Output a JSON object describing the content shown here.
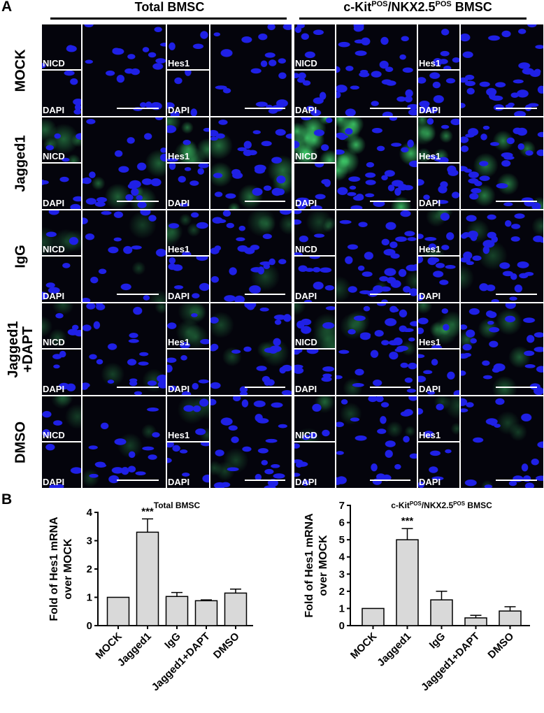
{
  "panel_a": {
    "letter": "A",
    "groups": [
      {
        "base": "Total BMSC",
        "sup1": "",
        "mid": "",
        "sup2": "",
        "tail": ""
      },
      {
        "base": "c-Kit",
        "sup1": "POS",
        "mid": "/NKX2.5",
        "sup2": "POS",
        "tail": " BMSC"
      }
    ],
    "rows": [
      {
        "label": [
          "MOCK"
        ],
        "green": [
          0,
          0,
          0,
          0
        ],
        "density": [
          0.6,
          0.6,
          1.0,
          1.0
        ]
      },
      {
        "label": [
          "Jagged1"
        ],
        "green": [
          0.35,
          0.45,
          1.0,
          0.55
        ],
        "density": [
          0.7,
          0.8,
          1.0,
          1.0
        ]
      },
      {
        "label": [
          "IgG"
        ],
        "green": [
          0.05,
          0.1,
          0.05,
          0.1
        ],
        "density": [
          0.5,
          0.8,
          1.0,
          1.0
        ]
      },
      {
        "label": [
          "Jagged1",
          "+DAPT"
        ],
        "green": [
          0.08,
          0.12,
          0.1,
          0.3
        ],
        "density": [
          0.7,
          0.8,
          1.0,
          0.9
        ]
      },
      {
        "label": [
          "DMSO"
        ],
        "green": [
          0.05,
          0.05,
          0.05,
          0.05
        ],
        "density": [
          0.5,
          0.8,
          0.8,
          0.6
        ]
      }
    ],
    "inset_labels": {
      "nicd": "NICD",
      "hes1": "Hes1",
      "dapi": "DAPI"
    }
  },
  "panel_b": {
    "letter": "B"
  },
  "colors": {
    "nuclei": "#1f20e6",
    "green_signal": "#3fcf6a",
    "bar_fill": "#d9d9d9",
    "tile_bg": "#04040c"
  },
  "chart_data": [
    {
      "type": "bar",
      "title": "Total BMSC",
      "categories": [
        "MOCK",
        "Jagged1",
        "IgG",
        "Jagged1+DAPT",
        "DMSO"
      ],
      "values": [
        1.0,
        3.3,
        1.03,
        0.88,
        1.15
      ],
      "errors": [
        0,
        0.47,
        0.14,
        0.03,
        0.14
      ],
      "annotations": [
        {
          "category": "Jagged1",
          "text": "***"
        }
      ],
      "ylabel": [
        "Fold of Hes1 mRNA",
        "over MOCK"
      ],
      "ylim": [
        0,
        4
      ],
      "yticks": [
        0,
        1,
        2,
        3,
        4
      ],
      "grid": false
    },
    {
      "type": "bar",
      "title": "c-Kit POS/NKX2.5 POS BMSC",
      "title_parts": {
        "base": "c-Kit",
        "sup1": "POS",
        "mid": "/NKX2.5",
        "sup2": "POS",
        "tail": " BMSC"
      },
      "categories": [
        "MOCK",
        "Jagged1",
        "IgG",
        "Jagged1+DAPT",
        "DMSO"
      ],
      "values": [
        1.0,
        5.0,
        1.5,
        0.45,
        0.85
      ],
      "errors": [
        0,
        0.65,
        0.5,
        0.15,
        0.25
      ],
      "annotations": [
        {
          "category": "Jagged1",
          "text": "***"
        }
      ],
      "ylabel": [
        "Fold of Hes1 mRNA",
        "over MOCK"
      ],
      "ylim": [
        0,
        7
      ],
      "yticks": [
        0,
        1,
        2,
        3,
        4,
        5,
        6,
        7
      ],
      "grid": false
    }
  ]
}
